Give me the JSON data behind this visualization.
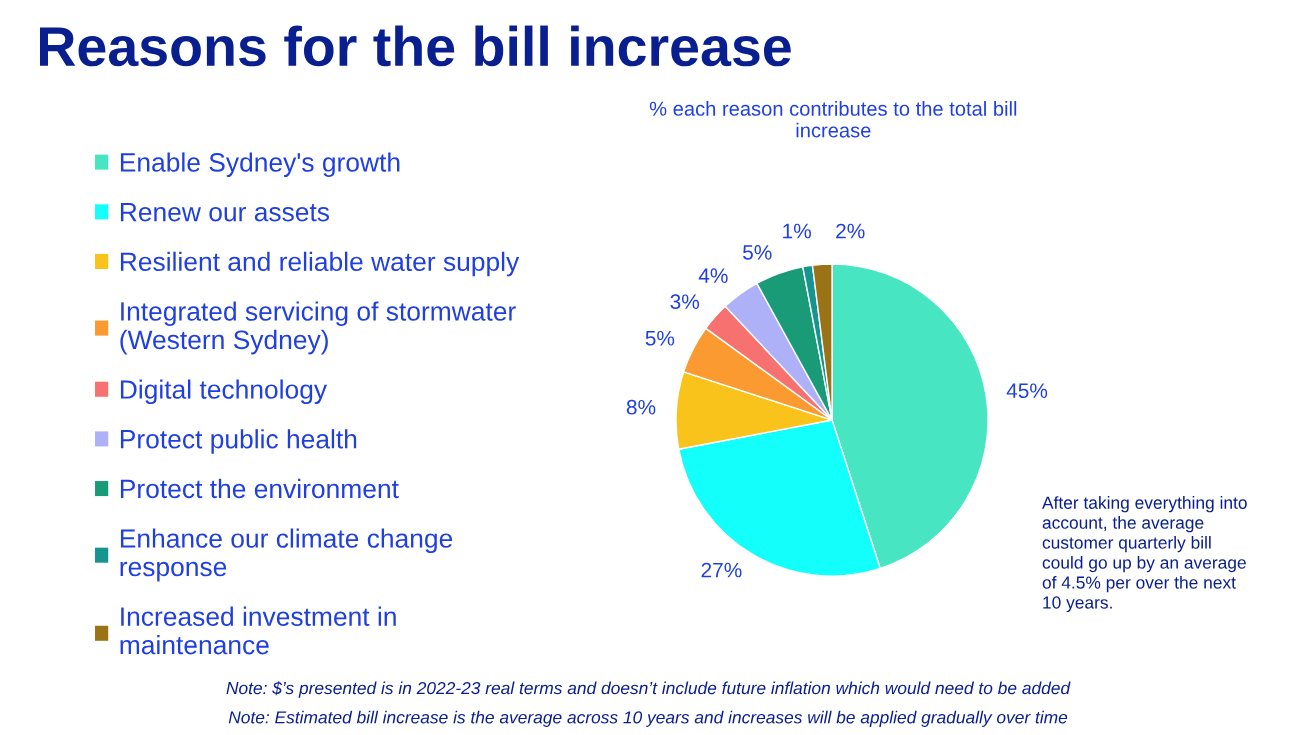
{
  "chart_data": {
    "type": "pie",
    "title": "Reasons for the bill increase",
    "subtitle": "% each reason contributes to the total bill\nincrease",
    "categories": [
      "Enable Sydney's growth",
      "Renew our assets",
      "Resilient and reliable water supply",
      "Integrated servicing of stormwater\n(Western Sydney)",
      "Digital technology",
      "Protect public health",
      "Protect the environment",
      "Enhance our climate change\nresponse",
      "Increased investment in\nmaintenance"
    ],
    "values": [
      45,
      27,
      8,
      5,
      3,
      4,
      5,
      1,
      2
    ],
    "value_labels": [
      "45%",
      "27%",
      "8%",
      "5%",
      "3%",
      "4%",
      "5%",
      "1%",
      "2%"
    ],
    "colors": [
      "#48e5c2",
      "#12fffc",
      "#f9c31b",
      "#fb9a30",
      "#f87171",
      "#aeb0f8",
      "#199b78",
      "#16948f",
      "#9a7316"
    ],
    "legend": "left",
    "annotations": [
      "After taking everything into\naccount, the average\ncustomer quarterly bill\ncould go up by an average\nof 4.5% per over the next\n10 years.",
      "Note: $’s presented is in 2022-23 real terms and doesn’t include future inflation which would need to be added",
      "Note: Estimated bill increase is the average across 10 years and increases will be applied gradually over time"
    ]
  }
}
